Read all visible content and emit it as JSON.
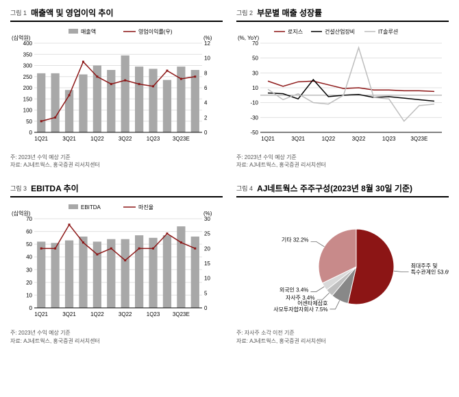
{
  "fig1": {
    "label": "그림 1",
    "title": "매출액 및 영업이익 추이",
    "type": "bar+line",
    "y_left_label": "(십억원)",
    "y_right_label": "(%)",
    "categories": [
      "1Q21",
      "",
      "3Q21",
      "",
      "1Q22",
      "",
      "3Q22",
      "",
      "1Q23",
      "",
      "3Q23E",
      ""
    ],
    "bars": [
      265,
      265,
      190,
      260,
      300,
      280,
      345,
      295,
      285,
      235,
      295,
      280
    ],
    "line": [
      1.5,
      2.0,
      5.0,
      9.5,
      7.5,
      6.5,
      7.0,
      6.5,
      6.2,
      8.3,
      7.2,
      7.5
    ],
    "bar_color": "#a8a8a8",
    "line_color": "#8c1515",
    "ylim_left": [
      0,
      400
    ],
    "ytick_left_step": 50,
    "ylim_right": [
      0,
      12
    ],
    "ytick_right_step": 2,
    "legend": {
      "bar": "매출액",
      "line": "영업이익률(우)"
    },
    "note1": "주: 2023년 수익 예상 기준",
    "note2": "자료: AJ네트웍스, 홍국증권 리서치센터",
    "grid_color": "#e0e0e0",
    "axis_color": "#000",
    "tick_font_size": 8
  },
  "fig2": {
    "label": "그림 2",
    "title": "부문별 매출 성장률",
    "type": "line",
    "y_left_label": "(%, YoY)",
    "categories": [
      "1Q21",
      "",
      "3Q21",
      "",
      "1Q22",
      "",
      "3Q22",
      "",
      "1Q23",
      "",
      "3Q23E",
      ""
    ],
    "series": {
      "logis": {
        "label": "로지스",
        "color": "#8c1515",
        "values": [
          19,
          12,
          18,
          19,
          14,
          9,
          10,
          7,
          7,
          6,
          6,
          5
        ]
      },
      "const": {
        "label": "건설산업장비",
        "color": "#000000",
        "values": [
          3,
          2,
          -5,
          21,
          -2,
          0,
          1,
          -3,
          -2,
          -4,
          -6,
          -8
        ]
      },
      "it": {
        "label": "IT솔루션",
        "color": "#bdbdbd",
        "values": [
          8,
          -6,
          2,
          -10,
          -12,
          0,
          64,
          -3,
          -5,
          -35,
          -14,
          -12
        ]
      }
    },
    "ylim": [
      -50,
      70
    ],
    "ytick_step": 20,
    "note1": "주: 2023년 수익 예상 기준",
    "note2": "자료: AJ네트웍스, 홍국증권 리서치센터",
    "grid_color": "#e0e0e0",
    "axis_color": "#000",
    "tick_font_size": 8
  },
  "fig3": {
    "label": "그림 3",
    "title": "EBITDA 추이",
    "type": "bar+line",
    "y_left_label": "(십억원)",
    "y_right_label": "(%)",
    "categories": [
      "1Q21",
      "",
      "3Q21",
      "",
      "1Q22",
      "",
      "3Q22",
      "",
      "1Q23",
      "",
      "3Q23E",
      ""
    ],
    "bars": [
      52,
      51,
      53,
      56,
      52,
      54,
      54,
      57,
      55,
      57,
      64,
      56
    ],
    "line": [
      20,
      20,
      28,
      22,
      18,
      20,
      16,
      20,
      20,
      25,
      22,
      20
    ],
    "bar_color": "#a8a8a8",
    "line_color": "#8c1515",
    "ylim_left": [
      0,
      70
    ],
    "ytick_left_step": 10,
    "ylim_right": [
      0,
      30
    ],
    "ytick_right_step": 5,
    "legend": {
      "bar": "EBITDA",
      "line": "마진율"
    },
    "note1": "주: 2023년 수익 예상 기준",
    "note2": "자료: AJ네트웍스, 홍국증권 리서치센터",
    "grid_color": "#e0e0e0",
    "axis_color": "#000",
    "tick_font_size": 8
  },
  "fig4": {
    "label": "그림 4",
    "title": "AJ네트웍스 주주구성(2023년 8월 30일 기준)",
    "type": "pie",
    "slices": [
      {
        "label": "최대주주 및\n특수관계인",
        "value": 53.6,
        "color": "#8c1515"
      },
      {
        "label": "어센타제삼호\n사모투자합자회사",
        "value": 7.5,
        "color": "#888888"
      },
      {
        "label": "자사주",
        "value": 3.4,
        "color": "#bfbfbf"
      },
      {
        "label": "외국인",
        "value": 3.4,
        "color": "#d9d9d9"
      },
      {
        "label": "기타",
        "value": 32.2,
        "color": "#c88a8a"
      }
    ],
    "note1": "주: 자사주 소각 이전 기준",
    "note2": "자료: AJ네트웍스, 홍국증권 리서치센터",
    "label_font_size": 8
  }
}
